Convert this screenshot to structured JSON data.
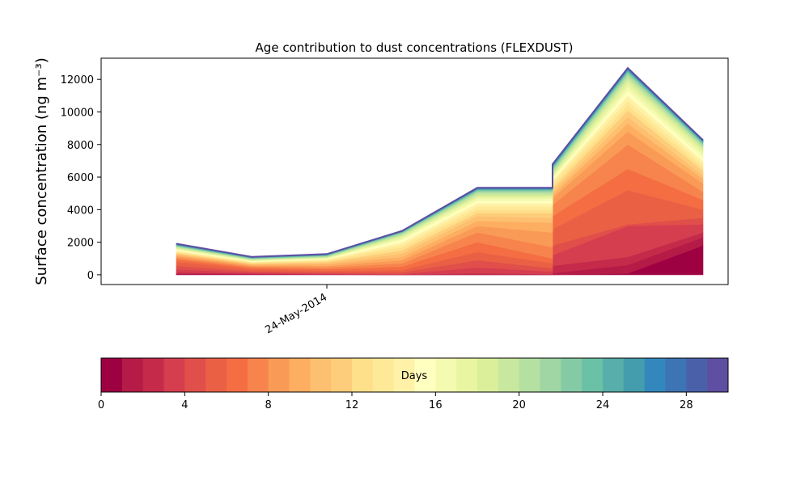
{
  "chart_data": {
    "type": "area",
    "stacked": true,
    "title": "Age contribution to dust concentrations (FLEXDUST)",
    "ylabel": "Surface concentration (ng m⁻³)",
    "xlabel": "",
    "x": [
      "2014-05-23T12:00",
      "2014-05-24T00:00",
      "2014-05-24T06:00",
      "2014-05-24T12:00",
      "2014-05-24T18:00",
      "2014-05-25T00:00",
      "2014-05-25T06:00"
    ],
    "x_ticks": [
      {
        "value": "2014-05-24T00:00",
        "label": "24-May-2014"
      }
    ],
    "y_ticks": [
      0,
      2000,
      4000,
      6000,
      8000,
      10000,
      12000
    ],
    "ylim": [
      -600,
      13300
    ],
    "xlim": [
      "2014-05-23T06:00",
      "2014-05-25T08:00"
    ],
    "colormap": "Spectral",
    "age_bins_days": 30,
    "cumulative_by_age_day": [
      [
        30,
        20,
        10,
        0,
        0,
        0,
        0,
        80,
        1800
      ],
      [
        60,
        40,
        20,
        0,
        20,
        10,
        100,
        600,
        2300
      ],
      [
        150,
        80,
        40,
        10,
        100,
        40,
        550,
        1100,
        2600
      ],
      [
        330,
        150,
        80,
        40,
        450,
        200,
        1200,
        3000,
        3100
      ],
      [
        550,
        230,
        150,
        150,
        900,
        400,
        1800,
        3100,
        3500
      ],
      [
        800,
        350,
        250,
        300,
        1400,
        700,
        2800,
        5200,
        4000
      ],
      [
        950,
        430,
        350,
        500,
        2000,
        1000,
        3600,
        6500,
        4600
      ],
      [
        1050,
        500,
        450,
        700,
        2600,
        1700,
        4300,
        8000,
        5100
      ],
      [
        1140,
        560,
        540,
        900,
        3000,
        2600,
        4700,
        8800,
        5600
      ],
      [
        1220,
        620,
        640,
        1100,
        3300,
        3200,
        4900,
        9300,
        5900
      ],
      [
        1280,
        660,
        730,
        1300,
        3600,
        3500,
        5100,
        9700,
        6100
      ],
      [
        1340,
        700,
        800,
        1500,
        3800,
        3800,
        5300,
        10100,
        6400
      ],
      [
        1390,
        740,
        860,
        1700,
        4000,
        4000,
        5500,
        10400,
        6600
      ],
      [
        1440,
        780,
        910,
        1850,
        4200,
        4200,
        5700,
        10700,
        6800
      ],
      [
        1490,
        810,
        950,
        2000,
        4400,
        4400,
        5800,
        11000,
        7000
      ],
      [
        1540,
        840,
        990,
        2150,
        4550,
        4550,
        5900,
        11300,
        7200
      ],
      [
        1590,
        870,
        1020,
        2250,
        4700,
        4700,
        6000,
        11550,
        7400
      ],
      [
        1630,
        900,
        1050,
        2350,
        4800,
        4800,
        6100,
        11800,
        7600
      ],
      [
        1670,
        930,
        1080,
        2420,
        4900,
        4900,
        6200,
        12000,
        7750
      ],
      [
        1710,
        955,
        1110,
        2480,
        5000,
        5000,
        6300,
        12150,
        7850
      ],
      [
        1745,
        980,
        1140,
        2530,
        5080,
        5080,
        6400,
        12280,
        7950
      ],
      [
        1775,
        1000,
        1165,
        2570,
        5140,
        5140,
        6480,
        12380,
        8020
      ],
      [
        1800,
        1020,
        1185,
        2600,
        5190,
        5190,
        6550,
        12460,
        8080
      ],
      [
        1825,
        1040,
        1205,
        2625,
        5230,
        5230,
        6610,
        12520,
        8130
      ],
      [
        1845,
        1055,
        1220,
        2645,
        5260,
        5260,
        6660,
        12570,
        8170
      ],
      [
        1860,
        1068,
        1233,
        2660,
        5285,
        5285,
        6700,
        12610,
        8200
      ],
      [
        1875,
        1080,
        1245,
        2672,
        5305,
        5305,
        6730,
        12640,
        8225
      ],
      [
        1888,
        1090,
        1255,
        2682,
        5320,
        5320,
        6755,
        12665,
        8245
      ],
      [
        1898,
        1098,
        1263,
        2690,
        5332,
        5332,
        6775,
        12685,
        8260
      ],
      [
        1905,
        1105,
        1270,
        2697,
        5340,
        5340,
        6790,
        12700,
        8270
      ]
    ],
    "area_x": [
      "2014-05-23T12:00",
      "2014-05-23T18:00",
      "2014-05-24T00:00",
      "2014-05-24T06:00",
      "2014-05-24T12:00",
      "2014-05-24T18:00",
      "2014-05-24T18:00",
      "2014-05-25T00:00",
      "2014-05-25T06:00"
    ],
    "colorbar": {
      "label": "Days",
      "ticks": [
        0,
        4,
        8,
        12,
        16,
        20,
        24,
        28
      ],
      "range": [
        0,
        30
      ],
      "colors": [
        "#9e0142",
        "#b41b47",
        "#c52a4b",
        "#d53e4f",
        "#e04f4a",
        "#ea6045",
        "#f46d43",
        "#f7844d",
        "#fa9a57",
        "#fdae61",
        "#fdbf70",
        "#fecd7b",
        "#fee08b",
        "#fee998",
        "#fff2a8",
        "#ffffbf",
        "#f4fab0",
        "#e9f5a1",
        "#dbef9a",
        "#c7e89e",
        "#b4e0a2",
        "#9fd6a4",
        "#84cba5",
        "#6bc1a5",
        "#57aeaa",
        "#449dac",
        "#3288bd",
        "#3d74b3",
        "#4a61aa",
        "#5e4fa2"
      ]
    }
  }
}
